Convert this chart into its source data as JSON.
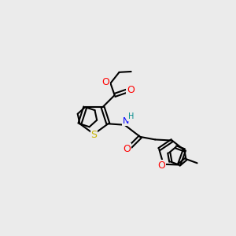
{
  "bg_color": "#ebebeb",
  "atom_colors": {
    "S": "#c8b400",
    "O": "#ff0000",
    "N": "#0000ff",
    "H_on_N": "#008b8b",
    "C": "#000000"
  },
  "bond_color": "#000000",
  "bond_width": 1.5
}
